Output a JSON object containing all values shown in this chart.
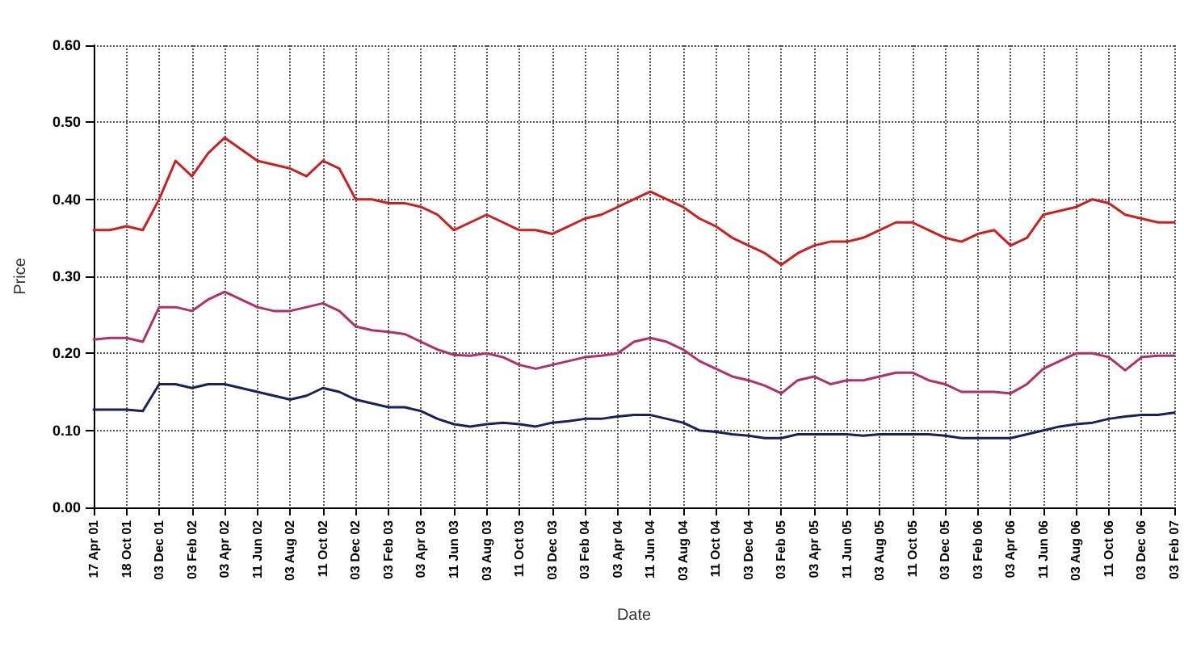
{
  "chart_data": {
    "type": "line",
    "xlabel": "Date",
    "ylabel": "Price",
    "categories": [
      "17 Apr 01",
      null,
      "18 Oct 01",
      null,
      "03 Dec 01",
      null,
      "03 Feb 02",
      null,
      "03 Apr 02",
      null,
      "11 Jun 02",
      null,
      "03 Aug 02",
      null,
      "11 Oct 02",
      null,
      "03 Dec 02",
      null,
      "03 Feb 03",
      null,
      "03 Apr 03",
      null,
      "11 Jun 03",
      null,
      "03 Aug 03",
      null,
      "11 Oct 03",
      null,
      "03 Dec 03",
      null,
      "03 Feb 04",
      null,
      "03 Apr 04",
      null,
      "11 Jun 04",
      null,
      "03 Aug 04",
      null,
      "11 Oct 04",
      null,
      "03 Dec 04",
      null,
      "03 Feb 05",
      null,
      "03 Apr 05",
      null,
      "11 Jun 05",
      null,
      "03 Aug 05",
      null,
      "11 Oct 05",
      null,
      "03 Dec 05",
      null,
      "03 Feb 06",
      null,
      "03 Apr 06",
      null,
      "11 Jun 06",
      null,
      "03 Aug 06",
      null,
      "11 Oct 06",
      null,
      "03 Dec 06",
      null,
      "03 Feb 07"
    ],
    "series": [
      {
        "color": "#1c1f5e",
        "values": [
          0.127,
          0.127,
          0.127,
          0.125,
          0.16,
          0.16,
          0.155,
          0.16,
          0.16,
          0.155,
          0.15,
          0.145,
          0.14,
          0.145,
          0.155,
          0.15,
          0.14,
          0.135,
          0.13,
          0.13,
          0.125,
          0.115,
          0.108,
          0.105,
          0.108,
          0.11,
          0.108,
          0.105,
          0.11,
          0.112,
          0.115,
          0.115,
          0.118,
          0.12,
          0.12,
          0.115,
          0.11,
          0.1,
          0.098,
          0.095,
          0.093,
          0.09,
          0.09,
          0.095,
          0.095,
          0.095,
          0.095,
          0.093,
          0.095,
          0.095,
          0.095,
          0.095,
          0.093,
          0.09,
          0.09,
          0.09,
          0.09,
          0.095,
          0.1,
          0.105,
          0.108,
          0.11,
          0.115,
          0.118,
          0.12,
          0.12,
          0.123
        ]
      },
      {
        "color": "#b0306a",
        "values": [
          0.218,
          0.22,
          0.22,
          0.215,
          0.26,
          0.26,
          0.255,
          0.27,
          0.28,
          0.27,
          0.26,
          0.255,
          0.255,
          0.26,
          0.265,
          0.255,
          0.235,
          0.23,
          0.228,
          0.225,
          0.215,
          0.205,
          0.198,
          0.197,
          0.2,
          0.195,
          0.185,
          0.18,
          0.185,
          0.19,
          0.195,
          0.197,
          0.2,
          0.215,
          0.22,
          0.215,
          0.205,
          0.19,
          0.18,
          0.17,
          0.165,
          0.158,
          0.148,
          0.165,
          0.17,
          0.16,
          0.165,
          0.165,
          0.17,
          0.175,
          0.175,
          0.165,
          0.16,
          0.15,
          0.15,
          0.15,
          0.148,
          0.16,
          0.18,
          0.19,
          0.2,
          0.2,
          0.195,
          0.178,
          0.195,
          0.197,
          0.197
        ]
      },
      {
        "color": "#cc1f1f",
        "values": [
          0.36,
          0.36,
          0.365,
          0.36,
          0.4,
          0.45,
          0.43,
          0.46,
          0.48,
          0.465,
          0.45,
          0.445,
          0.44,
          0.43,
          0.45,
          0.44,
          0.4,
          0.4,
          0.395,
          0.395,
          0.39,
          0.38,
          0.36,
          0.37,
          0.38,
          0.37,
          0.36,
          0.36,
          0.355,
          0.365,
          0.375,
          0.38,
          0.39,
          0.4,
          0.41,
          0.4,
          0.39,
          0.375,
          0.365,
          0.35,
          0.34,
          0.33,
          0.315,
          0.33,
          0.34,
          0.345,
          0.345,
          0.35,
          0.36,
          0.37,
          0.37,
          0.36,
          0.35,
          0.345,
          0.355,
          0.36,
          0.34,
          0.35,
          0.38,
          0.385,
          0.39,
          0.4,
          0.395,
          0.38,
          0.375,
          0.37,
          0.37
        ]
      }
    ],
    "ylim": [
      0,
      0.6
    ],
    "yticks": [
      {
        "value": 0,
        "label": "0.00"
      },
      {
        "value": 0.1,
        "label": "0.10"
      },
      {
        "value": 0.2,
        "label": "0.20"
      },
      {
        "value": 0.3,
        "label": "0.30"
      },
      {
        "value": 0.4,
        "label": "0.40"
      },
      {
        "value": 0.5,
        "label": "0.50"
      },
      {
        "value": 0.6,
        "label": "0.60"
      }
    ],
    "grid": true,
    "line_style": "solid",
    "marker": "none"
  }
}
